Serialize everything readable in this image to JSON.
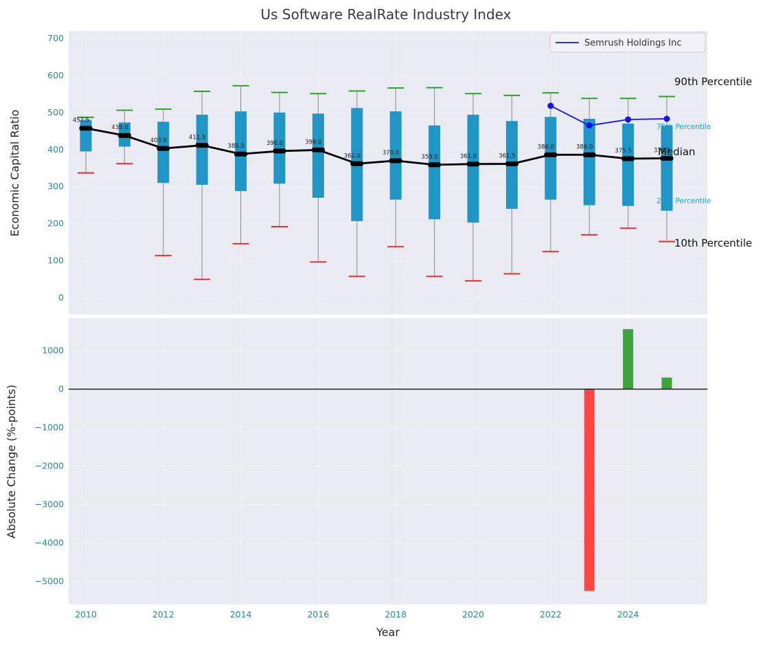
{
  "title": "Us Software RealRate Industry Index",
  "axes": {
    "top_ylabel": "Economic Capital Ratio",
    "bottom_ylabel": "Absolute Change (%-points)",
    "xlabel": "Year"
  },
  "legend": {
    "label": "Semrush Holdings Inc"
  },
  "annotations": {
    "p90": "90th Percentile",
    "p75": "75th Percentile",
    "median": "Median",
    "p25": "25th Percentile",
    "p10": "10th Percentile"
  },
  "colors": {
    "axes_background": "#eaebf2",
    "grid": "#ffffff",
    "box_fill": "#2196c4",
    "whisker": "#999999",
    "cap_top": "#2ca02c",
    "cap_bottom": "#e03131",
    "median": "#000000",
    "series": "#1414e8",
    "bar_positive": "#3da33d",
    "bar_negative": "#ff4545",
    "tick_label": "#2a8a8a",
    "annotation_small": "#1ba3c8",
    "title": "#3a3a3a"
  },
  "chart_data": [
    {
      "type": "boxplot",
      "title": "Us Software RealRate Industry Index",
      "ylabel": "Economic Capital Ratio",
      "ylim": [
        0,
        700
      ],
      "yticks": [
        0,
        100,
        200,
        300,
        400,
        500,
        600,
        700
      ],
      "xticks": [
        2010,
        2012,
        2014,
        2016,
        2018,
        2020,
        2022,
        2024
      ],
      "grid": true,
      "legend_position": "upper right",
      "boxes": [
        {
          "year": 2010,
          "p10": 337,
          "q1": 395,
          "median": 457.5,
          "q3": 480,
          "p90": 487
        },
        {
          "year": 2011,
          "p10": 362,
          "q1": 408,
          "median": 438.0,
          "q3": 473,
          "p90": 506
        },
        {
          "year": 2012,
          "p10": 114,
          "q1": 310,
          "median": 403.0,
          "q3": 475,
          "p90": 509
        },
        {
          "year": 2013,
          "p10": 50,
          "q1": 305,
          "median": 411.5,
          "q3": 494,
          "p90": 557
        },
        {
          "year": 2014,
          "p10": 146,
          "q1": 288,
          "median": 388.0,
          "q3": 503,
          "p90": 572
        },
        {
          "year": 2015,
          "p10": 192,
          "q1": 308,
          "median": 396.0,
          "q3": 500,
          "p90": 554
        },
        {
          "year": 2016,
          "p10": 97,
          "q1": 270,
          "median": 399.0,
          "q3": 497,
          "p90": 551
        },
        {
          "year": 2017,
          "p10": 58,
          "q1": 207,
          "median": 362.0,
          "q3": 512,
          "p90": 558
        },
        {
          "year": 2018,
          "p10": 138,
          "q1": 265,
          "median": 370.0,
          "q3": 503,
          "p90": 566
        },
        {
          "year": 2019,
          "p10": 58,
          "q1": 212,
          "median": 359.0,
          "q3": 465,
          "p90": 567
        },
        {
          "year": 2020,
          "p10": 46,
          "q1": 203,
          "median": 361.0,
          "q3": 494,
          "p90": 551
        },
        {
          "year": 2021,
          "p10": 65,
          "q1": 240,
          "median": 361.5,
          "q3": 477,
          "p90": 546
        },
        {
          "year": 2022,
          "p10": 125,
          "q1": 265,
          "median": 386.0,
          "q3": 488,
          "p90": 553
        },
        {
          "year": 2023,
          "p10": 170,
          "q1": 250,
          "median": 386.0,
          "q3": 483,
          "p90": 538
        },
        {
          "year": 2024,
          "p10": 188,
          "q1": 248,
          "median": 375.5,
          "q3": 470,
          "p90": 538
        },
        {
          "year": 2025,
          "p10": 152,
          "q1": 235,
          "median": 376.5,
          "q3": 465,
          "p90": 543
        }
      ],
      "series": [
        {
          "name": "Semrush Holdings Inc",
          "x": [
            2022,
            2023,
            2024,
            2025
          ],
          "y": [
            518,
            465,
            481,
            483
          ]
        }
      ]
    },
    {
      "type": "bar",
      "ylabel": "Absolute Change (%-points)",
      "xlabel": "Year",
      "ylim": [
        -5600,
        1850
      ],
      "yticks": [
        1000,
        0,
        -1000,
        -2000,
        -3000,
        -4000,
        -5000
      ],
      "xticks": [
        2010,
        2012,
        2014,
        2016,
        2018,
        2020,
        2022,
        2024
      ],
      "bars": [
        {
          "year": 2023,
          "value": -5250
        },
        {
          "year": 2024,
          "value": 1560
        },
        {
          "year": 2025,
          "value": 300
        }
      ]
    }
  ]
}
